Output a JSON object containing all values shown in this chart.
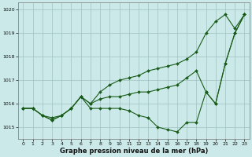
{
  "xlabel": "Graphe pression niveau de la mer (hPa)",
  "bg_color": "#cbe9e9",
  "line_color": "#1a5c1a",
  "grid_color": "#a0c0c0",
  "xlim": [
    -0.5,
    23.5
  ],
  "ylim": [
    1014.5,
    1020.3
  ],
  "yticks": [
    1015,
    1016,
    1017,
    1018,
    1019,
    1020
  ],
  "xticks": [
    0,
    1,
    2,
    3,
    4,
    5,
    6,
    7,
    8,
    9,
    10,
    11,
    12,
    13,
    14,
    15,
    16,
    17,
    18,
    19,
    20,
    21,
    22,
    23
  ],
  "series": [
    [
      1015.8,
      1015.8,
      1015.5,
      1015.4,
      1015.5,
      1015.8,
      1016.3,
      1015.8,
      1015.8,
      1015.8,
      1015.8,
      1015.7,
      1015.5,
      1015.4,
      1015.0,
      1014.9,
      1014.8,
      1015.2,
      1015.2,
      1016.5,
      1016.0,
      1017.7,
      1019.0,
      1019.8
    ],
    [
      1015.8,
      1015.8,
      1015.5,
      1015.3,
      1015.5,
      1015.8,
      1016.3,
      1016.0,
      1016.2,
      1016.3,
      1016.3,
      1016.4,
      1016.5,
      1016.5,
      1016.6,
      1016.7,
      1016.8,
      1017.1,
      1017.4,
      1016.5,
      1016.0,
      1017.7,
      1019.0,
      1019.8
    ],
    [
      1015.8,
      1015.8,
      1015.5,
      1015.3,
      1015.5,
      1015.8,
      1016.3,
      1016.0,
      1016.5,
      1016.8,
      1017.0,
      1017.1,
      1017.2,
      1017.4,
      1017.5,
      1017.6,
      1017.7,
      1017.9,
      1018.2,
      1019.0,
      1019.5,
      1019.8,
      1019.2,
      1019.8
    ]
  ]
}
